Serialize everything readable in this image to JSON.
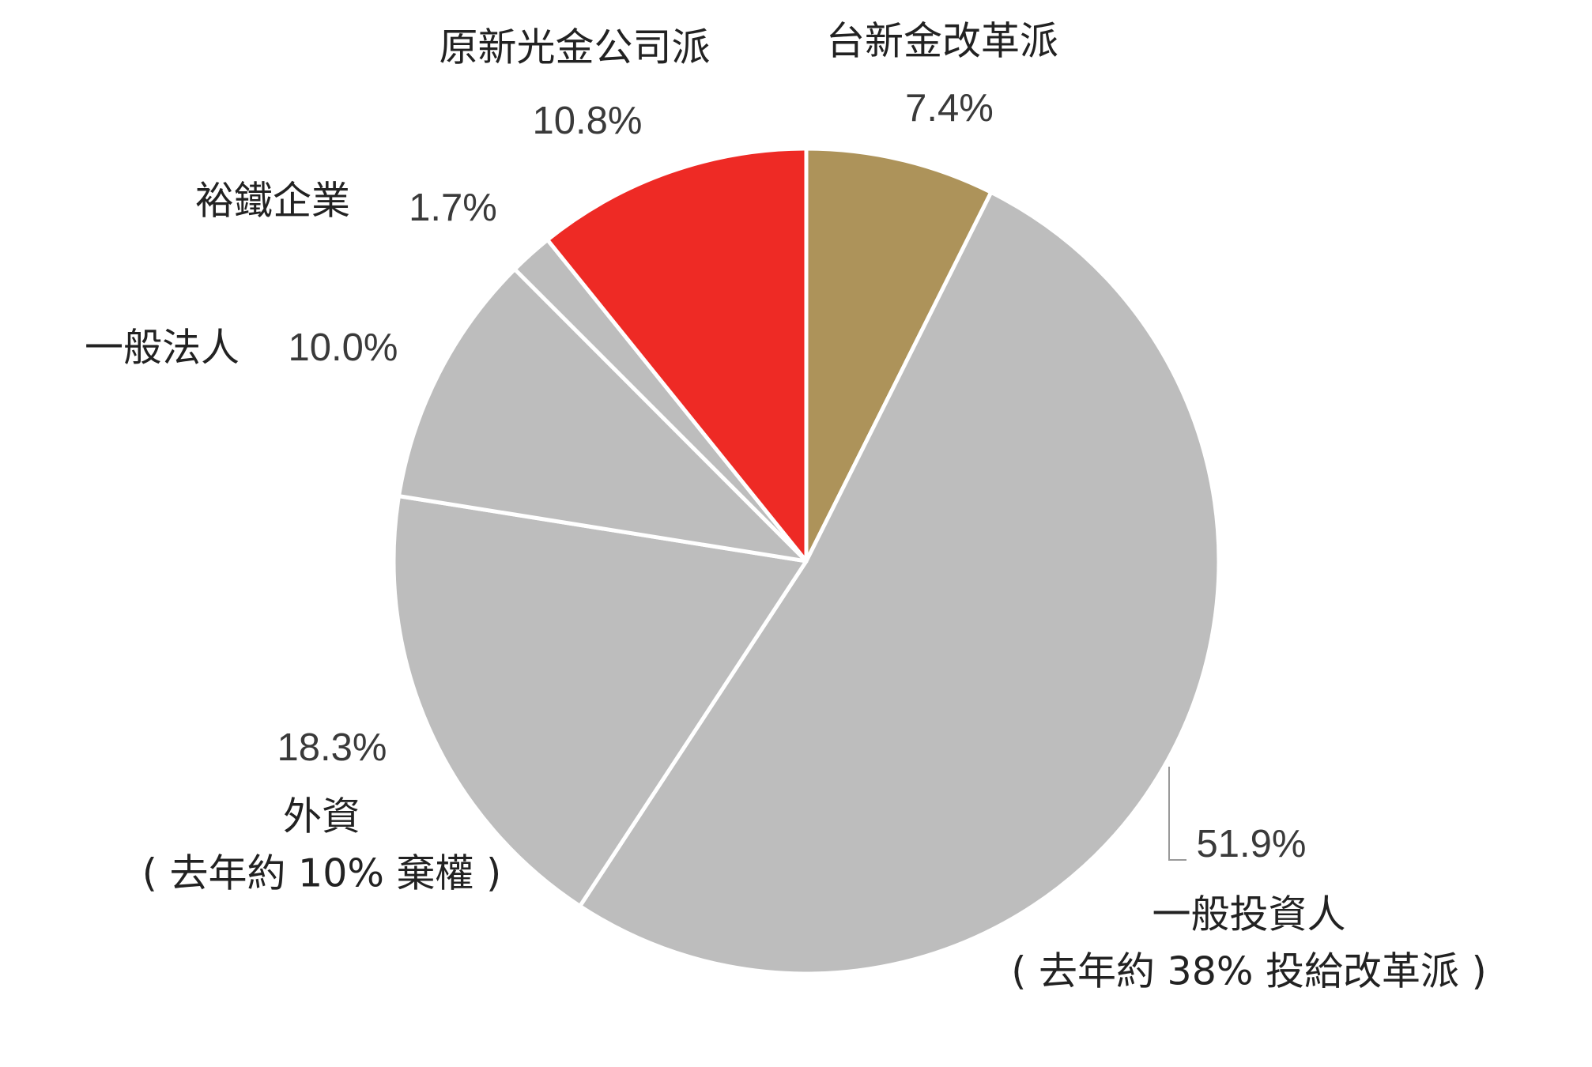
{
  "chart_data": {
    "type": "pie",
    "categories": [
      "台新金改革派",
      "一般投資人",
      "外資",
      "一般法人",
      "裕鐵企業",
      "原新光金公司派"
    ],
    "values": [
      7.4,
      51.9,
      18.3,
      10.0,
      1.7,
      10.8
    ],
    "value_labels": [
      "7.4%",
      "51.9%",
      "18.3%",
      "10.0%",
      "1.7%",
      "10.8%"
    ],
    "colors": [
      "#ad935a",
      "#bdbdbd",
      "#bdbdbd",
      "#bdbdbd",
      "#bdbdbd",
      "#ee2a25"
    ],
    "annotations": [
      "( 去年約 38% 投給改革派 )",
      "( 去年約 10% 棄權 )"
    ]
  }
}
